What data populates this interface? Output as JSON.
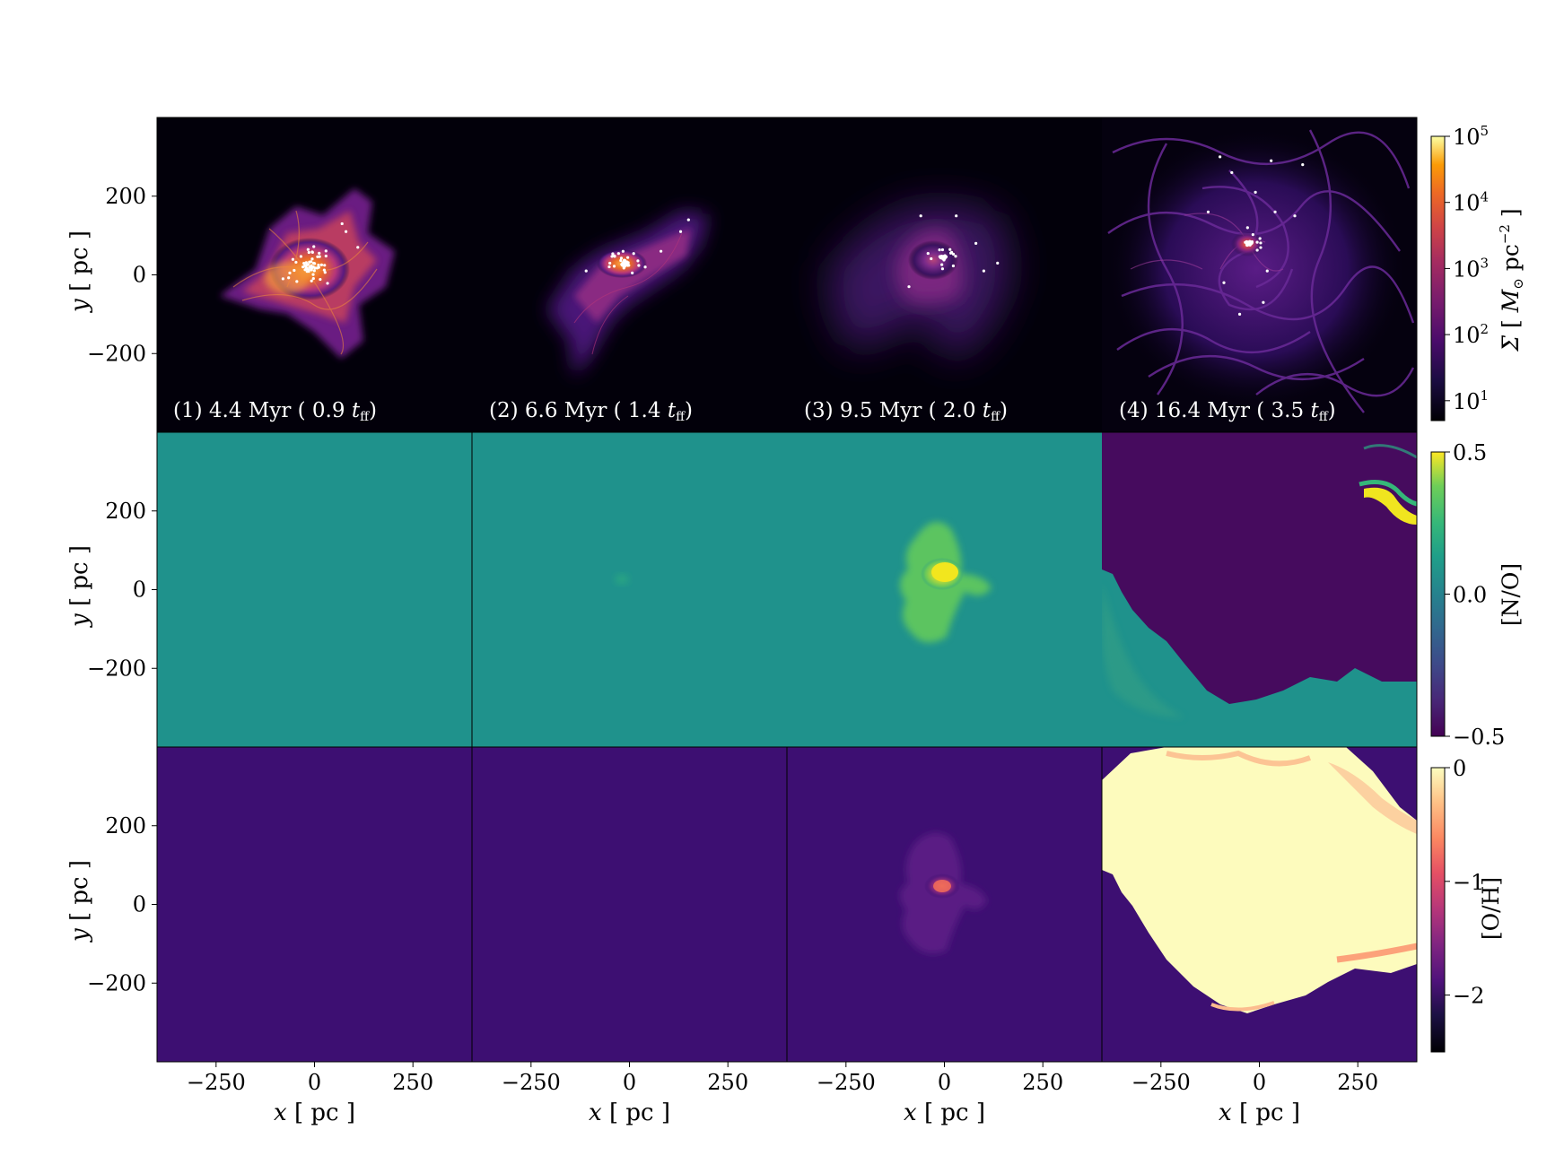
{
  "chart_data": {
    "type": "heatmap",
    "layout": "3 rows x 4 columns of projection maps",
    "x_axis": {
      "label_var": "x",
      "label_unit": "pc",
      "range": [
        -400,
        400
      ],
      "ticks": [
        -250,
        0,
        250
      ],
      "tick_labels": [
        "−250",
        "0",
        "250"
      ]
    },
    "y_axis": {
      "label_var": "y",
      "label_unit": "pc",
      "range": [
        -400,
        400
      ],
      "ticks": [
        200,
        0,
        -200
      ],
      "tick_labels": [
        "200",
        "0",
        "−200"
      ]
    },
    "columns": [
      {
        "label": "(1) 4.4 Myr ( 0.9 ",
        "tff_sym": "t",
        "tff_sub": "ff",
        "close": ")",
        "time_myr": 4.4,
        "t_over_tff": 0.9
      },
      {
        "label": "(2) 6.6 Myr ( 1.4 ",
        "tff_sym": "t",
        "tff_sub": "ff",
        "close": ")",
        "time_myr": 6.6,
        "t_over_tff": 1.4
      },
      {
        "label": "(3) 9.5 Myr ( 2.0 ",
        "tff_sym": "t",
        "tff_sub": "ff",
        "close": ")",
        "time_myr": 9.5,
        "t_over_tff": 2.0
      },
      {
        "label": "(4) 16.4 Myr ( 3.5 ",
        "tff_sym": "t",
        "tff_sub": "ff",
        "close": ")",
        "time_myr": 16.4,
        "t_over_tff": 3.5
      }
    ],
    "rows": [
      {
        "quantity": "surface_density",
        "colormap": "inferno",
        "colorbar": {
          "scale": "log",
          "range": [
            5,
            100000
          ],
          "ticks": [
            10,
            100,
            1000,
            10000,
            100000
          ],
          "tick_base": "10",
          "tick_exponents": [
            "1",
            "2",
            "3",
            "4",
            "5"
          ],
          "label_sym": "Σ",
          "label_unit_M": "M",
          "label_unit_sun": "⊙",
          "label_unit_pc": "pc",
          "label_unit_exp": "−2"
        }
      },
      {
        "quantity": "[N/O]",
        "colormap": "viridis",
        "colorbar": {
          "scale": "linear",
          "range": [
            -0.5,
            0.5
          ],
          "ticks": [
            0.5,
            0.0,
            -0.5
          ],
          "tick_labels": [
            "0.5",
            "0.0",
            "−0.5"
          ],
          "label": "[N/O]"
        }
      },
      {
        "quantity": "[O/H]",
        "colormap": "magma",
        "colorbar": {
          "scale": "linear",
          "range": [
            -2.5,
            0
          ],
          "ticks": [
            0,
            -1,
            -2
          ],
          "tick_labels": [
            "0",
            "−1",
            "−2"
          ],
          "label": "[O/H]"
        }
      }
    ]
  },
  "colors": {
    "background": "#ffffff",
    "row1_bg": "#02000a",
    "row2_bg": "#1f928c",
    "row2_low": "#450559",
    "row2_high": "#f0e51f",
    "row3_bg": "#3d0f72",
    "row3_high": "#fcfdbf",
    "star_points": "#ffffff"
  }
}
